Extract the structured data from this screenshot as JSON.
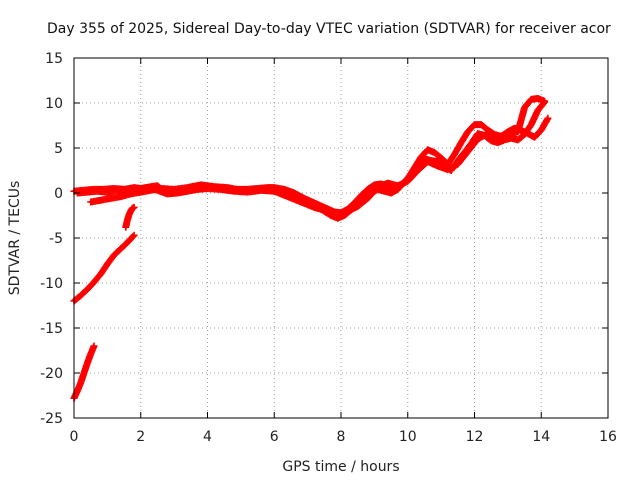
{
  "chart_data": {
    "type": "scatter",
    "title": "Day 355 of 2025, Sidereal Day-to-day VTEC variation (SDTVAR) for receiver acor",
    "xlabel": "GPS time / hours",
    "ylabel": "SDTVAR / TECUs",
    "xlim": [
      0,
      16
    ],
    "ylim": [
      -25,
      15
    ],
    "x_ticks": [
      0,
      2,
      4,
      6,
      8,
      10,
      12,
      14,
      16
    ],
    "y_ticks": [
      -25,
      -20,
      -15,
      -10,
      -5,
      0,
      5,
      10,
      15
    ],
    "x_tick_labels": [
      "0",
      "2",
      "4",
      "6",
      "8",
      "10",
      "12",
      "14",
      "16"
    ],
    "y_tick_labels": [
      "-25",
      "-20",
      "-15",
      "-10",
      "-5",
      "0",
      "5",
      "10",
      "15"
    ],
    "grid": true,
    "marker": "plus",
    "color": "#ff0000",
    "series": [
      {
        "values": [
          [
            0.0,
            0.2
          ],
          [
            0.3,
            0.3
          ],
          [
            0.6,
            0.4
          ],
          [
            0.9,
            0.4
          ],
          [
            1.2,
            0.5
          ],
          [
            1.5,
            0.4
          ],
          [
            1.8,
            0.6
          ],
          [
            2.0,
            0.5
          ],
          [
            2.3,
            0.7
          ],
          [
            2.5,
            0.8
          ],
          [
            2.6,
            0.5
          ],
          [
            2.9,
            0.1
          ],
          [
            3.2,
            0.1
          ],
          [
            3.5,
            0.4
          ],
          [
            3.8,
            0.6
          ],
          [
            4.0,
            0.7
          ],
          [
            4.3,
            0.6
          ],
          [
            4.6,
            0.5
          ],
          [
            4.9,
            0.4
          ],
          [
            5.2,
            0.4
          ],
          [
            5.5,
            0.5
          ],
          [
            5.8,
            0.6
          ],
          [
            6.0,
            0.6
          ],
          [
            6.3,
            0.4
          ],
          [
            6.6,
            0.0
          ],
          [
            6.9,
            -0.6
          ],
          [
            7.2,
            -1.1
          ],
          [
            7.5,
            -1.6
          ],
          [
            7.8,
            -2.1
          ],
          [
            8.0,
            -2.2
          ],
          [
            8.2,
            -1.8
          ],
          [
            8.4,
            -1.1
          ],
          [
            8.6,
            -0.3
          ],
          [
            8.8,
            0.4
          ],
          [
            9.0,
            0.9
          ],
          [
            9.2,
            1.0
          ],
          [
            9.4,
            0.8
          ],
          [
            9.6,
            0.6
          ],
          [
            9.8,
            0.9
          ],
          [
            10.0,
            1.6
          ],
          [
            10.2,
            2.8
          ],
          [
            10.4,
            4.0
          ],
          [
            10.6,
            4.8
          ],
          [
            10.8,
            4.5
          ],
          [
            11.0,
            3.9
          ],
          [
            11.2,
            3.2
          ],
          [
            11.4,
            4.3
          ],
          [
            11.6,
            5.6
          ],
          [
            11.8,
            6.8
          ],
          [
            12.0,
            7.6
          ],
          [
            12.2,
            7.6
          ],
          [
            12.4,
            7.0
          ],
          [
            12.6,
            6.5
          ],
          [
            12.8,
            6.3
          ],
          [
            13.0,
            6.8
          ],
          [
            13.2,
            7.2
          ],
          [
            13.5,
            6.8
          ],
          [
            13.8,
            6.2
          ],
          [
            14.0,
            7.0
          ],
          [
            14.2,
            8.3
          ]
        ]
      },
      {
        "values": [
          [
            0.5,
            -1.0
          ],
          [
            0.8,
            -0.8
          ],
          [
            1.1,
            -0.6
          ],
          [
            1.4,
            -0.4
          ],
          [
            1.7,
            -0.1
          ],
          [
            2.0,
            0.1
          ],
          [
            2.3,
            0.3
          ],
          [
            2.6,
            0.5
          ],
          [
            3.0,
            0.4
          ],
          [
            3.4,
            0.6
          ],
          [
            3.8,
            0.9
          ],
          [
            4.2,
            0.7
          ],
          [
            4.6,
            0.6
          ],
          [
            5.0,
            0.3
          ],
          [
            5.4,
            0.2
          ],
          [
            5.8,
            0.5
          ],
          [
            6.2,
            0.3
          ],
          [
            6.5,
            -0.2
          ],
          [
            6.8,
            -0.5
          ],
          [
            7.1,
            -1.2
          ],
          [
            7.4,
            -1.8
          ],
          [
            7.7,
            -2.5
          ],
          [
            7.9,
            -2.8
          ],
          [
            8.1,
            -2.5
          ],
          [
            8.3,
            -1.9
          ],
          [
            8.5,
            -1.2
          ],
          [
            8.7,
            -0.5
          ],
          [
            8.9,
            0.0
          ],
          [
            9.1,
            0.4
          ],
          [
            9.3,
            0.2
          ],
          [
            9.5,
            0.0
          ],
          [
            9.7,
            0.4
          ],
          [
            9.9,
            1.2
          ],
          [
            10.1,
            2.1
          ],
          [
            10.3,
            3.2
          ],
          [
            10.5,
            3.8
          ],
          [
            10.7,
            3.6
          ],
          [
            10.9,
            3.5
          ],
          [
            11.1,
            3.0
          ],
          [
            11.3,
            2.5
          ],
          [
            11.5,
            3.6
          ],
          [
            11.7,
            4.5
          ],
          [
            11.9,
            5.5
          ],
          [
            12.1,
            6.6
          ],
          [
            12.3,
            6.4
          ],
          [
            12.5,
            5.8
          ],
          [
            12.7,
            5.6
          ],
          [
            12.9,
            5.9
          ],
          [
            13.1,
            6.1
          ],
          [
            13.3,
            5.9
          ],
          [
            13.5,
            6.5
          ],
          [
            13.7,
            7.6
          ],
          [
            13.9,
            9.2
          ],
          [
            14.1,
            10.1
          ]
        ]
      },
      {
        "values": [
          [
            0.1,
            0.0
          ],
          [
            0.4,
            0.1
          ],
          [
            0.7,
            0.2
          ],
          [
            1.0,
            0.1
          ],
          [
            1.3,
            0.3
          ],
          [
            1.6,
            0.2
          ],
          [
            1.9,
            0.4
          ],
          [
            2.2,
            0.6
          ],
          [
            2.5,
            0.3
          ],
          [
            2.8,
            -0.1
          ],
          [
            3.1,
            0.0
          ],
          [
            3.4,
            0.2
          ],
          [
            3.7,
            0.4
          ],
          [
            4.0,
            0.5
          ],
          [
            4.4,
            0.4
          ],
          [
            4.8,
            0.2
          ],
          [
            5.2,
            0.1
          ],
          [
            5.6,
            0.3
          ],
          [
            6.0,
            0.2
          ],
          [
            6.4,
            -0.4
          ],
          [
            6.8,
            -1.0
          ],
          [
            7.2,
            -1.6
          ],
          [
            7.6,
            -2.0
          ],
          [
            7.9,
            -2.3
          ],
          [
            8.2,
            -2.0
          ],
          [
            8.5,
            -1.5
          ],
          [
            8.8,
            -0.6
          ],
          [
            9.1,
            0.6
          ],
          [
            9.4,
            1.1
          ],
          [
            9.7,
            0.8
          ],
          [
            10.0,
            1.3
          ],
          [
            10.3,
            2.5
          ],
          [
            10.6,
            3.5
          ],
          [
            10.9,
            3.0
          ],
          [
            11.2,
            2.6
          ],
          [
            11.5,
            3.2
          ],
          [
            11.8,
            4.6
          ],
          [
            12.1,
            6.0
          ],
          [
            12.4,
            6.6
          ],
          [
            12.7,
            6.2
          ],
          [
            13.0,
            6.5
          ],
          [
            13.3,
            6.8
          ],
          [
            13.5,
            9.5
          ],
          [
            13.7,
            10.4
          ],
          [
            13.9,
            10.5
          ],
          [
            14.1,
            10.2
          ]
        ]
      },
      {
        "values": [
          [
            1.55,
            -3.8
          ],
          [
            1.6,
            -3.0
          ],
          [
            1.65,
            -2.4
          ],
          [
            1.7,
            -2.0
          ],
          [
            1.75,
            -1.7
          ],
          [
            1.8,
            -1.6
          ]
        ]
      },
      {
        "values": [
          [
            0.0,
            -12.0
          ],
          [
            0.2,
            -11.4
          ],
          [
            0.4,
            -10.7
          ],
          [
            0.6,
            -9.9
          ],
          [
            0.8,
            -9.0
          ],
          [
            1.0,
            -7.9
          ],
          [
            1.2,
            -6.9
          ],
          [
            1.4,
            -6.2
          ],
          [
            1.6,
            -5.5
          ],
          [
            1.8,
            -4.7
          ]
        ]
      },
      {
        "values": [
          [
            0.0,
            -22.8
          ],
          [
            0.1,
            -22.0
          ],
          [
            0.2,
            -21.1
          ],
          [
            0.3,
            -20.0
          ],
          [
            0.4,
            -18.9
          ],
          [
            0.5,
            -17.9
          ],
          [
            0.6,
            -17.0
          ]
        ]
      }
    ]
  }
}
